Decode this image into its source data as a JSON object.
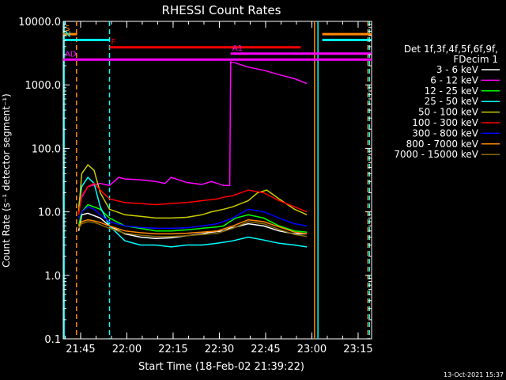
{
  "chart_data": {
    "type": "line",
    "title": "RHESSI Count Rates",
    "xlabel": "Start Time (18-Feb-02 21:39:22)",
    "ylabel": "Count Rate (s⁻¹ detector segment⁻¹)",
    "y_scale": "log",
    "ylim": [
      0.1,
      10000.0
    ],
    "xlim_minutes_after_start": [
      0,
      100
    ],
    "x_tick_labels": [
      "21:45",
      "22:00",
      "22:15",
      "22:30",
      "22:45",
      "23:00",
      "23:15"
    ],
    "x_tick_minutes": [
      5.63,
      20.63,
      35.63,
      50.63,
      65.63,
      80.63,
      95.63
    ],
    "y_tick_labels": [
      "0.1",
      "1.0",
      "10.0",
      "100.0",
      "1000.0",
      "10000.0"
    ],
    "y_tick_values": [
      0.1,
      1,
      10,
      100,
      1000,
      10000
    ],
    "legend_title": "Det 1f,3f,4f,5f,6f,9f,\nFDecim 1",
    "legend_placement": "right, outside plot",
    "series": [
      {
        "name": "3 - 6 keV",
        "color": "#ffffff",
        "x": [
          0,
          4.5,
          5,
          6,
          8,
          12,
          15,
          20,
          25,
          30,
          35,
          40,
          45,
          48,
          52,
          54,
          56,
          60,
          65,
          70,
          75,
          77,
          79
        ],
        "y": [
          null,
          null,
          5,
          9,
          9.5,
          8,
          6,
          4.5,
          4,
          3.8,
          3.9,
          4.2,
          4.5,
          4.8,
          5,
          5.5,
          5.8,
          6.5,
          6,
          5,
          4.5,
          4.5,
          4.5
        ]
      },
      {
        "name": "6 - 12 keV",
        "color": "#ff00ff",
        "x": [
          5,
          6,
          8,
          12,
          15,
          18,
          20,
          25,
          30,
          33,
          35,
          40,
          45,
          48,
          50,
          52,
          54,
          54.3,
          56,
          60,
          65,
          70,
          75,
          78,
          79
        ],
        "y": [
          10,
          17,
          25,
          28,
          26,
          35,
          33,
          32,
          30,
          28,
          35,
          29,
          27,
          30,
          28,
          26,
          26,
          2300,
          2200,
          1900,
          1700,
          1450,
          1250,
          1100,
          1050
        ]
      },
      {
        "name": "12 - 25 keV",
        "color": "#00ff00",
        "x": [
          5,
          6,
          8,
          12,
          15,
          20,
          25,
          30,
          35,
          40,
          45,
          50,
          52,
          54,
          56,
          60,
          65,
          70,
          75,
          79
        ],
        "y": [
          6,
          10,
          13,
          11,
          8,
          6,
          5.5,
          5,
          5,
          5.2,
          5.5,
          5.8,
          6,
          7,
          8,
          9,
          8,
          6,
          5,
          4.8
        ]
      },
      {
        "name": "25 - 50 keV",
        "color": "#00ffff",
        "x": [
          5,
          6,
          8,
          10,
          12,
          15,
          20,
          25,
          30,
          35,
          40,
          45,
          50,
          55,
          60,
          65,
          70,
          75,
          79
        ],
        "y": [
          12,
          25,
          35,
          28,
          12,
          6,
          3.5,
          3,
          3,
          2.8,
          3,
          3,
          3.2,
          3.5,
          4,
          3.6,
          3.2,
          3,
          2.8
        ]
      },
      {
        "name": "50 - 100 keV",
        "color": "#cccc00",
        "x": [
          5,
          6,
          8,
          10,
          12,
          15,
          20,
          25,
          30,
          35,
          40,
          45,
          48,
          52,
          55,
          60,
          63,
          66,
          70,
          75,
          79
        ],
        "y": [
          10,
          40,
          55,
          45,
          20,
          11,
          9,
          8.5,
          8,
          8,
          8.2,
          9,
          10,
          11,
          12,
          15,
          20,
          22,
          16,
          11,
          9
        ]
      },
      {
        "name": "100 - 300 keV",
        "color": "#ff0000",
        "x": [
          5,
          6,
          8,
          10,
          12,
          15,
          20,
          25,
          30,
          35,
          40,
          45,
          50,
          52,
          55,
          60,
          65,
          70,
          75,
          79
        ],
        "y": [
          9,
          18,
          25,
          28,
          22,
          16,
          14,
          13.5,
          13,
          13.5,
          14,
          15,
          16,
          17,
          18,
          22,
          20,
          15,
          12,
          10
        ]
      },
      {
        "name": "300 - 800 keV",
        "color": "#0000ff",
        "x": [
          5,
          6,
          8,
          10,
          12,
          15,
          20,
          25,
          30,
          35,
          40,
          45,
          50,
          55,
          60,
          65,
          70,
          75,
          79
        ],
        "y": [
          8,
          10,
          12,
          11,
          9,
          7,
          6,
          5.7,
          5.5,
          5.5,
          5.6,
          6,
          6.5,
          8,
          11,
          10,
          8,
          6.5,
          6
        ]
      },
      {
        "name": "800 - 7000 keV",
        "color": "#ff8800",
        "x": [
          5,
          6,
          8,
          10,
          12,
          15,
          20,
          25,
          30,
          35,
          40,
          45,
          50,
          55,
          60,
          65,
          70,
          75,
          79
        ],
        "y": [
          6,
          7,
          7.5,
          7.2,
          6.8,
          6,
          5,
          4.7,
          4.5,
          4.5,
          4.6,
          4.8,
          5,
          6,
          7.5,
          7,
          5.8,
          4.8,
          4.5
        ]
      },
      {
        "name": "7000 - 15000 keV",
        "color": "#8a6a00",
        "x": [
          5,
          6,
          8,
          10,
          12,
          15,
          20,
          25,
          30,
          35,
          40,
          45,
          50,
          55,
          60,
          65,
          70,
          75,
          79
        ],
        "y": [
          5.5,
          6.5,
          7,
          6.8,
          6.3,
          5.5,
          4.6,
          4.3,
          4.1,
          4.1,
          4.2,
          4.4,
          4.6,
          5.5,
          7,
          6.5,
          5.3,
          4.4,
          4.1
        ]
      }
    ],
    "annotations": [
      {
        "label": "S",
        "color": "#ff8800",
        "y": 6300,
        "x_from": 0,
        "x_to": 4.5
      },
      {
        "label": "N",
        "color": "#00ffff",
        "y": 5100,
        "x_from": 0,
        "x_to": 15
      },
      {
        "label": "F",
        "color": "#ff0000",
        "y": 3900,
        "x_from": 15,
        "x_to": 77
      },
      {
        "label": "AD",
        "color": "#ff00ff",
        "y": 2500,
        "x_from": 0,
        "x_to": 100
      },
      {
        "label": "A1",
        "color": "#ff00ff",
        "y": 3100,
        "x_from": 54.3,
        "x_to": 100
      },
      {
        "label": "",
        "color": "#ff8800",
        "y": 6300,
        "x_from": 84,
        "x_to": 100
      },
      {
        "label": "",
        "color": "#00ffff",
        "y": 5100,
        "x_from": 84,
        "x_to": 100
      }
    ],
    "vertical_lines": [
      {
        "x": 0.3,
        "color": "#00ffff",
        "style": "solid"
      },
      {
        "x": 4.3,
        "color": "#ff8800",
        "style": "dashed"
      },
      {
        "x": 15,
        "color": "#00ffff",
        "style": "dashed"
      },
      {
        "x": 81.5,
        "color": "#ff8800",
        "style": "solid"
      },
      {
        "x": 82.6,
        "color": "#00ffff",
        "style": "solid"
      },
      {
        "x": 98.8,
        "color": "#ff8800",
        "style": "dashed"
      },
      {
        "x": 99.3,
        "color": "#00ffff",
        "style": "dashed"
      }
    ],
    "grid": false
  },
  "footer": {
    "timestamp": "13-Oct-2021 15:37"
  }
}
